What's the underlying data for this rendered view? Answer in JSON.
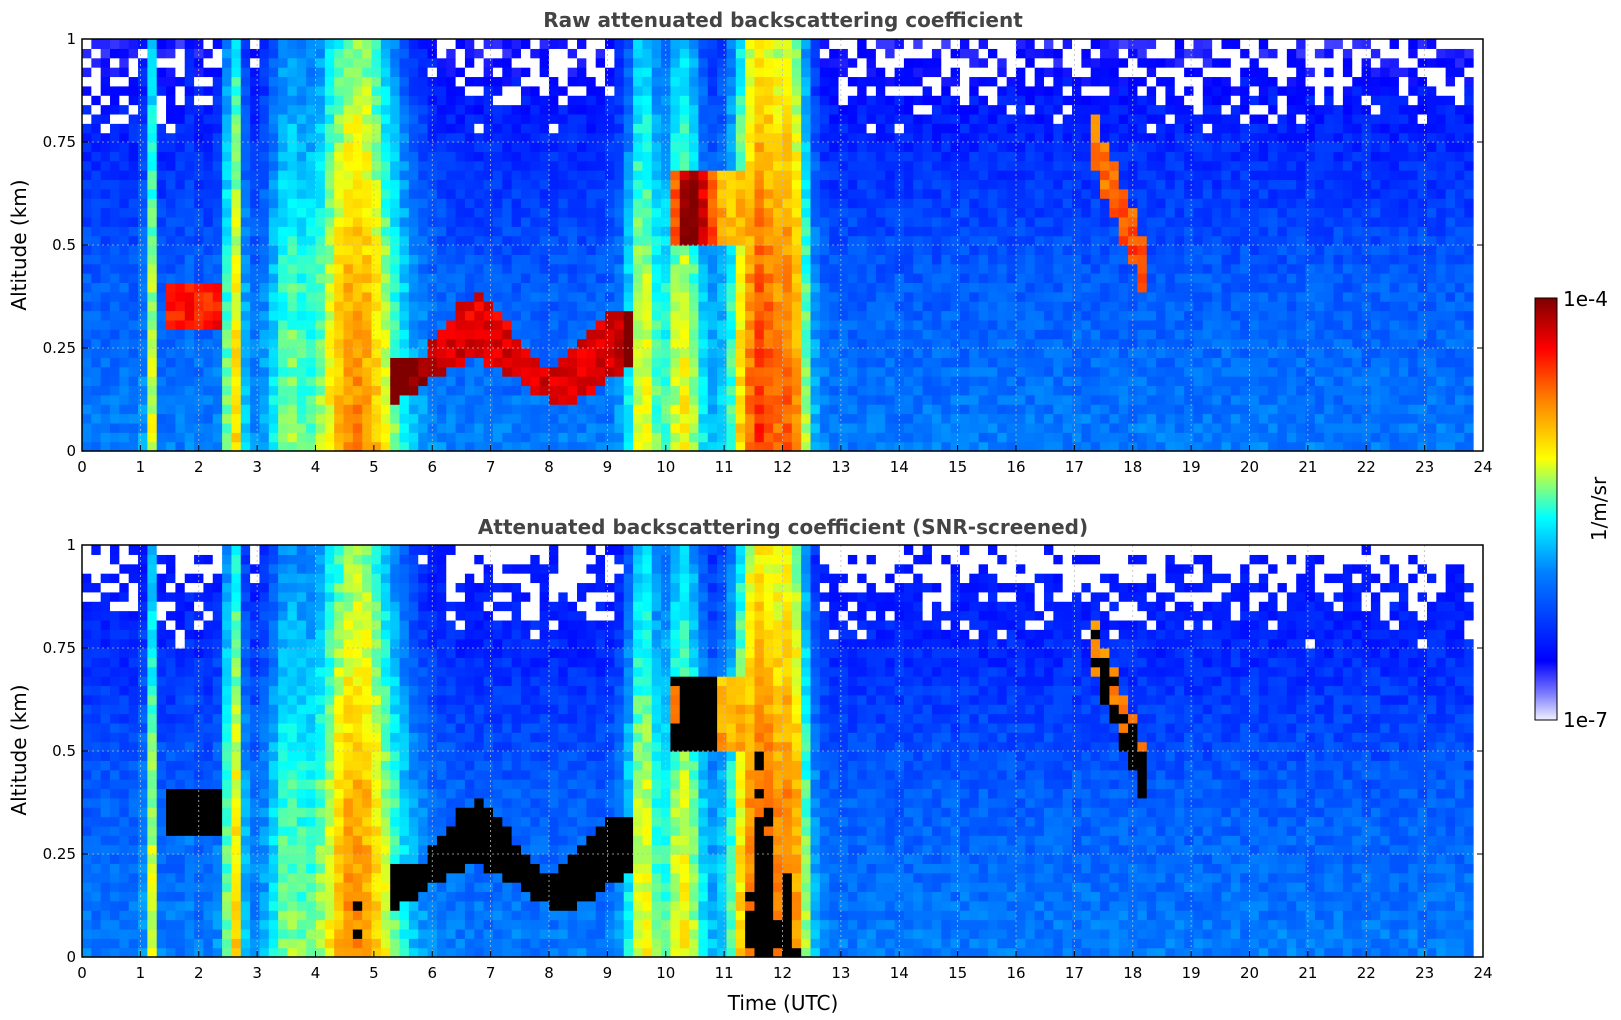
{
  "chart_data": [
    {
      "type": "heatmap",
      "title": "Raw attenuated backscattering coefficient",
      "xlabel": "",
      "ylabel": "Altitude (km)",
      "xlim": [
        0,
        24
      ],
      "ylim": [
        0,
        1
      ],
      "xticks": [
        "0",
        "1",
        "2",
        "3",
        "4",
        "5",
        "6",
        "7",
        "8",
        "9",
        "10",
        "11",
        "12",
        "13",
        "14",
        "15",
        "16",
        "17",
        "18",
        "19",
        "20",
        "21",
        "22",
        "23",
        "24"
      ],
      "yticks": [
        "0",
        "0.25",
        "0.5",
        "0.75",
        "1"
      ],
      "grid": true,
      "screened": false
    },
    {
      "type": "heatmap",
      "title": "Attenuated backscattering coefficient (SNR-screened)",
      "xlabel": "Time (UTC)",
      "ylabel": "Altitude (km)",
      "xlim": [
        0,
        24
      ],
      "ylim": [
        0,
        1
      ],
      "xticks": [
        "0",
        "1",
        "2",
        "3",
        "4",
        "5",
        "6",
        "7",
        "8",
        "9",
        "10",
        "11",
        "12",
        "13",
        "14",
        "15",
        "16",
        "17",
        "18",
        "19",
        "20",
        "21",
        "22",
        "23",
        "24"
      ],
      "yticks": [
        "0",
        "0.25",
        "0.5",
        "0.75",
        "1"
      ],
      "grid": true,
      "screened": true
    }
  ],
  "colorbar": {
    "label": "1/m/sr",
    "max_label": "1e-4",
    "min_label": "1e-7",
    "scale": "log",
    "colormap": [
      "#f0f0ff",
      "#0000ff",
      "#00a0ff",
      "#00ffff",
      "#ffff00",
      "#ff8000",
      "#ff0000",
      "#800000"
    ]
  }
}
